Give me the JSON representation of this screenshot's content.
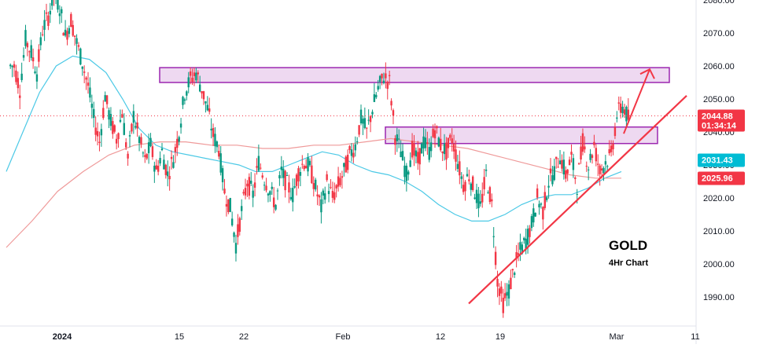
{
  "chart_data": {
    "type": "candlestick",
    "title": "GOLD",
    "subtitle": "4Hr Chart",
    "price_axis": {
      "ticks": [
        "2080.00",
        "2070.00",
        "2060.00",
        "2050.00",
        "2040.00",
        "2030.00",
        "2020.00",
        "2010.00",
        "2000.00",
        "1990.00"
      ],
      "range": [
        1984,
        2084
      ]
    },
    "time_axis": {
      "labels": [
        "2024",
        "15",
        "22",
        "Feb",
        "12",
        "19",
        "Mar",
        "11"
      ]
    },
    "badges": [
      {
        "price": 2044.88,
        "text": "2044.88",
        "subtext": "01:34:14",
        "color": "#f23645"
      },
      {
        "price": 2031.43,
        "text": "2031.43",
        "color": "#00bcd4"
      },
      {
        "price": 2025.96,
        "text": "2025.96",
        "color": "#f23645"
      }
    ],
    "resistance_zones": [
      {
        "low": 2055,
        "high": 2059.5
      },
      {
        "low": 2036.5,
        "high": 2041.5
      }
    ],
    "trendline": {
      "from_price": 1988,
      "to_price": 2051
    },
    "projection": {
      "from_price": 2039.5,
      "to_price": 2059
    },
    "close_price": 2044.88,
    "series": [
      {
        "name": "",
        "values": [
          2060,
          2053,
          2068,
          2064,
          2058,
          2071,
          2075,
          2082,
          2078,
          2069,
          2074,
          2067,
          2061,
          2054,
          2044,
          2037,
          2051,
          2043,
          2038,
          2046,
          2032,
          2045,
          2038,
          2031,
          2036,
          2028,
          2034,
          2027,
          2032,
          2040,
          2052,
          2056,
          2058,
          2053,
          2047,
          2039,
          2035,
          2022,
          2017,
          2006,
          2016,
          2025,
          2021,
          2031,
          2026,
          2022,
          2018,
          2028,
          2024,
          2021,
          2028,
          2031,
          2029,
          2023,
          2017,
          2025,
          2020,
          2024,
          2028,
          2033,
          2036,
          2044,
          2040,
          2047,
          2053,
          2057,
          2055,
          2039,
          2034,
          2027,
          2035,
          2031,
          2037,
          2034,
          2041,
          2036,
          2034,
          2038,
          2031,
          2024,
          2027,
          2022,
          2017,
          2027,
          2018,
          1995,
          1988,
          1992,
          1999,
          2004,
          2007,
          2012,
          2020,
          2016,
          2025,
          2028,
          2033,
          2027,
          2032,
          2024,
          2037,
          2030,
          2036,
          2028,
          2031,
          2033,
          2045,
          2048,
          2044
        ]
      }
    ],
    "moving_averages": [
      {
        "name": "",
        "color": "#4cc9e6",
        "values": [
          2028,
          2040,
          2052,
          2060,
          2063,
          2062,
          2058,
          2050,
          2041,
          2036,
          2034,
          2033,
          2032,
          2031,
          2030,
          2028,
          2028,
          2030,
          2032,
          2034,
          2033,
          2030,
          2028,
          2027,
          2025,
          2022,
          2018,
          2015,
          2013,
          2013,
          2015,
          2018,
          2020,
          2021,
          2021,
          2023,
          2026,
          2028
        ]
      },
      {
        "name": "",
        "color": "#ef9a9a",
        "values": [
          2005,
          2013,
          2022,
          2028,
          2033,
          2036,
          2037,
          2037,
          2036,
          2036,
          2035,
          2035,
          2036,
          2036,
          2037,
          2038,
          2037,
          2036,
          2035,
          2033,
          2031,
          2029,
          2027,
          2026,
          2026
        ]
      }
    ]
  }
}
